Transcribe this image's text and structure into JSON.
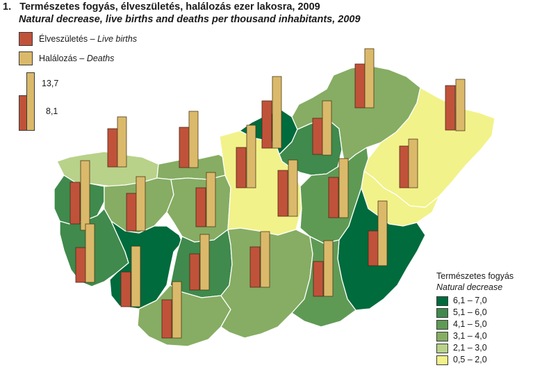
{
  "title": {
    "number": "1.",
    "hungarian": "Természetes fogyás, élveszületés, halálozás ezer lakosra, 2009",
    "english": "Natural decrease, live births and deaths per thousand inhabitants, 2009"
  },
  "bar_legend": {
    "births_hu": "Élveszületés",
    "births_en": "Live births",
    "deaths_hu": "Halálozás",
    "deaths_en": "Deaths",
    "separator": "–",
    "scale_high": "13,7",
    "scale_low": "8,1",
    "births_color": "#c0523a",
    "deaths_color": "#dbb96a"
  },
  "choropleth_legend": {
    "title_hu": "Természetes fogyás",
    "title_en": "Natural decrease",
    "classes": [
      {
        "label": "6,1 – 7,0",
        "color": "#006b3c"
      },
      {
        "label": "5,1 – 6,0",
        "color": "#3f8a4c"
      },
      {
        "label": "4,1 – 5,0",
        "color": "#5f9a55"
      },
      {
        "label": "3,1 – 4,0",
        "color": "#86ad63"
      },
      {
        "label": "2,1 – 3,0",
        "color": "#b8d28a"
      },
      {
        "label": "0,5 – 2,0",
        "color": "#f2f28a"
      }
    ]
  }
}
